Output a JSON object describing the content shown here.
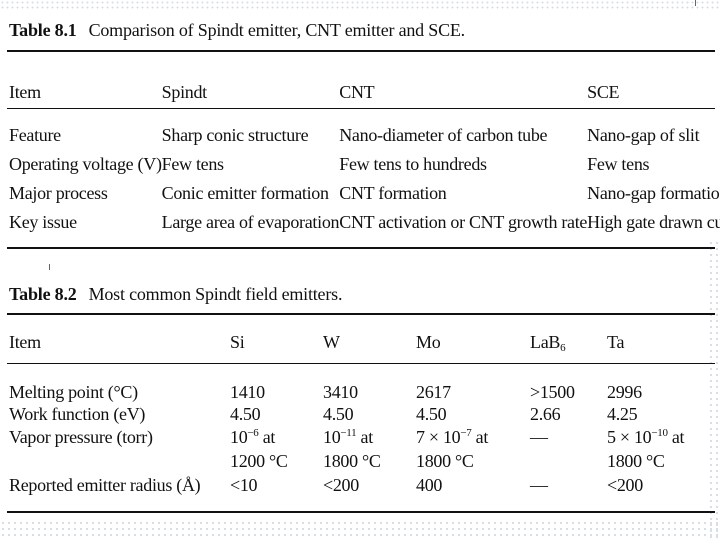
{
  "table1": {
    "label": "Table 8.1",
    "title": "Comparison of Spindt emitter, CNT emitter and SCE.",
    "headers": [
      "Item",
      "Spindt",
      "CNT",
      "SCE"
    ],
    "rows": [
      [
        "Feature",
        "Sharp conic structure",
        "Nano-diameter of carbon tube",
        "Nano-gap of slit"
      ],
      [
        "Operating voltage (V)",
        "Few tens",
        "Few tens to hundreds",
        "Few tens"
      ],
      [
        "Major process",
        "Conic emitter formation",
        "CNT formation",
        "Nano-gap formation"
      ],
      [
        "Key issue",
        "Large area of evaporation",
        "CNT activation or CNT growth rate",
        "High gate drawn current"
      ]
    ]
  },
  "table2": {
    "label": "Table 8.2",
    "title": "Most common Spindt field emitters.",
    "headers": {
      "item": "Item",
      "si": "Si",
      "w": "W",
      "mo": "Mo",
      "lab6_base": "LaB",
      "lab6_sub": "6",
      "ta": "Ta"
    },
    "rows": {
      "melting": {
        "label": "Melting point (°C)",
        "si": "1410",
        "w": "3410",
        "mo": "2617",
        "lab6": ">1500",
        "ta": "2996"
      },
      "work": {
        "label": "Work function (eV)",
        "si": "4.50",
        "w": "4.50",
        "mo": "4.50",
        "lab6": "2.66",
        "ta": "4.25"
      },
      "vapor": {
        "label": "Vapor pressure (torr)",
        "si_base": "10",
        "si_exp": "−6",
        "si_tail": " at",
        "si_temp": "1200 °C",
        "w_base": "10",
        "w_exp": "−11",
        "w_tail": " at",
        "w_temp": "1800 °C",
        "mo_base": "7 × 10",
        "mo_exp": "−7",
        "mo_tail": " at",
        "mo_temp": "1800 °C",
        "lab6": "—",
        "ta_base": "5 × 10",
        "ta_exp": "−10",
        "ta_tail": " at",
        "ta_temp": "1800 °C"
      },
      "radius": {
        "label": "Reported emitter radius (Å)",
        "si": "<10",
        "w": "<200",
        "mo": "400",
        "lab6": "—",
        "ta": "<200"
      }
    }
  }
}
